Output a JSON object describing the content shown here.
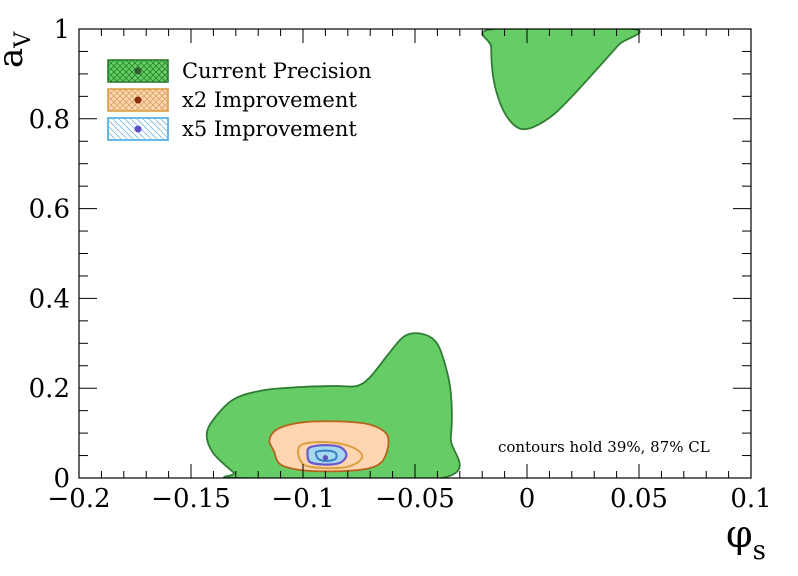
{
  "chart_data": {
    "type": "contour",
    "xlabel": "φ",
    "xlabel_sub": "s",
    "ylabel": "a",
    "ylabel_sub": "V",
    "xlim": [
      -0.2,
      0.1
    ],
    "ylim": [
      0,
      1
    ],
    "xticks": [
      -0.2,
      -0.15,
      -0.1,
      -0.05,
      0,
      0.05,
      0.1
    ],
    "xtick_labels": [
      "−0.2",
      "−0.15",
      "−0.1",
      "−0.05",
      "0",
      "0.05",
      "0.1"
    ],
    "yticks": [
      0,
      0.2,
      0.4,
      0.6,
      0.8,
      1
    ],
    "ytick_labels": [
      "0",
      "0.2",
      "0.4",
      "0.6",
      "0.8",
      "1"
    ],
    "annotation": "contours hold 39%, 87% CL",
    "legend_position": "top-left",
    "series": [
      {
        "name": "Current Precision",
        "fill": "#66cc66",
        "line": "#2e7d32",
        "marker": "#2e5e2e",
        "best_fit": [
          -0.09,
          0.045
        ],
        "regions": [
          [
            [
              -0.128,
              0
            ],
            [
              -0.131,
              0.012
            ],
            [
              -0.14,
              0.055
            ],
            [
              -0.143,
              0.095
            ],
            [
              -0.14,
              0.13
            ],
            [
              -0.131,
              0.175
            ],
            [
              -0.118,
              0.195
            ],
            [
              -0.1,
              0.203
            ],
            [
              -0.085,
              0.205
            ],
            [
              -0.076,
              0.205
            ],
            [
              -0.07,
              0.225
            ],
            [
              -0.062,
              0.275
            ],
            [
              -0.055,
              0.315
            ],
            [
              -0.048,
              0.322
            ],
            [
              -0.041,
              0.305
            ],
            [
              -0.037,
              0.26
            ],
            [
              -0.034,
              0.19
            ],
            [
              -0.034,
              0.09
            ],
            [
              -0.038,
              0
            ],
            [
              -0.128,
              0
            ]
          ],
          [
            [
              -0.015,
              1
            ],
            [
              -0.016,
              0.96
            ],
            [
              -0.015,
              0.89
            ],
            [
              -0.012,
              0.835
            ],
            [
              -0.008,
              0.798
            ],
            [
              -0.003,
              0.778
            ],
            [
              0.003,
              0.782
            ],
            [
              0.012,
              0.81
            ],
            [
              0.022,
              0.86
            ],
            [
              0.032,
              0.915
            ],
            [
              0.041,
              0.965
            ],
            [
              0.047,
              1
            ],
            [
              -0.015,
              1
            ]
          ]
        ]
      },
      {
        "name": "x2 Improvement",
        "fill": "#fdd5b0",
        "line": "#b5651d",
        "marker": "#8b2e0a",
        "best_fit": [
          -0.09,
          0.045
        ],
        "inner_line": "#daa040",
        "regions": [
          [
            [
              -0.113,
              0.06
            ],
            [
              -0.115,
              0.085
            ],
            [
              -0.111,
              0.11
            ],
            [
              -0.1,
              0.124
            ],
            [
              -0.085,
              0.126
            ],
            [
              -0.071,
              0.12
            ],
            [
              -0.063,
              0.1
            ],
            [
              -0.062,
              0.07
            ],
            [
              -0.065,
              0.035
            ],
            [
              -0.072,
              0.02
            ],
            [
              -0.085,
              0.015
            ],
            [
              -0.1,
              0.017
            ],
            [
              -0.11,
              0.03
            ],
            [
              -0.113,
              0.06
            ]
          ]
        ],
        "inner_regions": [
          [
            [
              -0.102,
              0.05
            ],
            [
              -0.101,
              0.073
            ],
            [
              -0.093,
              0.08
            ],
            [
              -0.082,
              0.075
            ],
            [
              -0.075,
              0.06
            ],
            [
              -0.074,
              0.042
            ],
            [
              -0.08,
              0.025
            ],
            [
              -0.09,
              0.022
            ],
            [
              -0.099,
              0.028
            ],
            [
              -0.102,
              0.05
            ]
          ]
        ]
      },
      {
        "name": "x5 Improvement",
        "fill": "#a6d8f0",
        "line": "#3b7fc4",
        "marker": "#6050c8",
        "best_fit": [
          -0.09,
          0.045
        ],
        "outer_line": "#6a5acd",
        "regions": [
          [
            [
              -0.098,
              0.055
            ],
            [
              -0.097,
              0.068
            ],
            [
              -0.091,
              0.073
            ],
            [
              -0.084,
              0.07
            ],
            [
              -0.081,
              0.058
            ],
            [
              -0.081,
              0.045
            ],
            [
              -0.084,
              0.033
            ],
            [
              -0.091,
              0.03
            ],
            [
              -0.097,
              0.036
            ],
            [
              -0.098,
              0.055
            ]
          ]
        ],
        "inner_regions": [
          [
            [
              -0.094,
              0.05
            ],
            [
              -0.094,
              0.058
            ],
            [
              -0.09,
              0.061
            ],
            [
              -0.086,
              0.058
            ],
            [
              -0.085,
              0.049
            ],
            [
              -0.086,
              0.041
            ],
            [
              -0.09,
              0.038
            ],
            [
              -0.093,
              0.042
            ],
            [
              -0.094,
              0.05
            ]
          ]
        ]
      }
    ]
  }
}
